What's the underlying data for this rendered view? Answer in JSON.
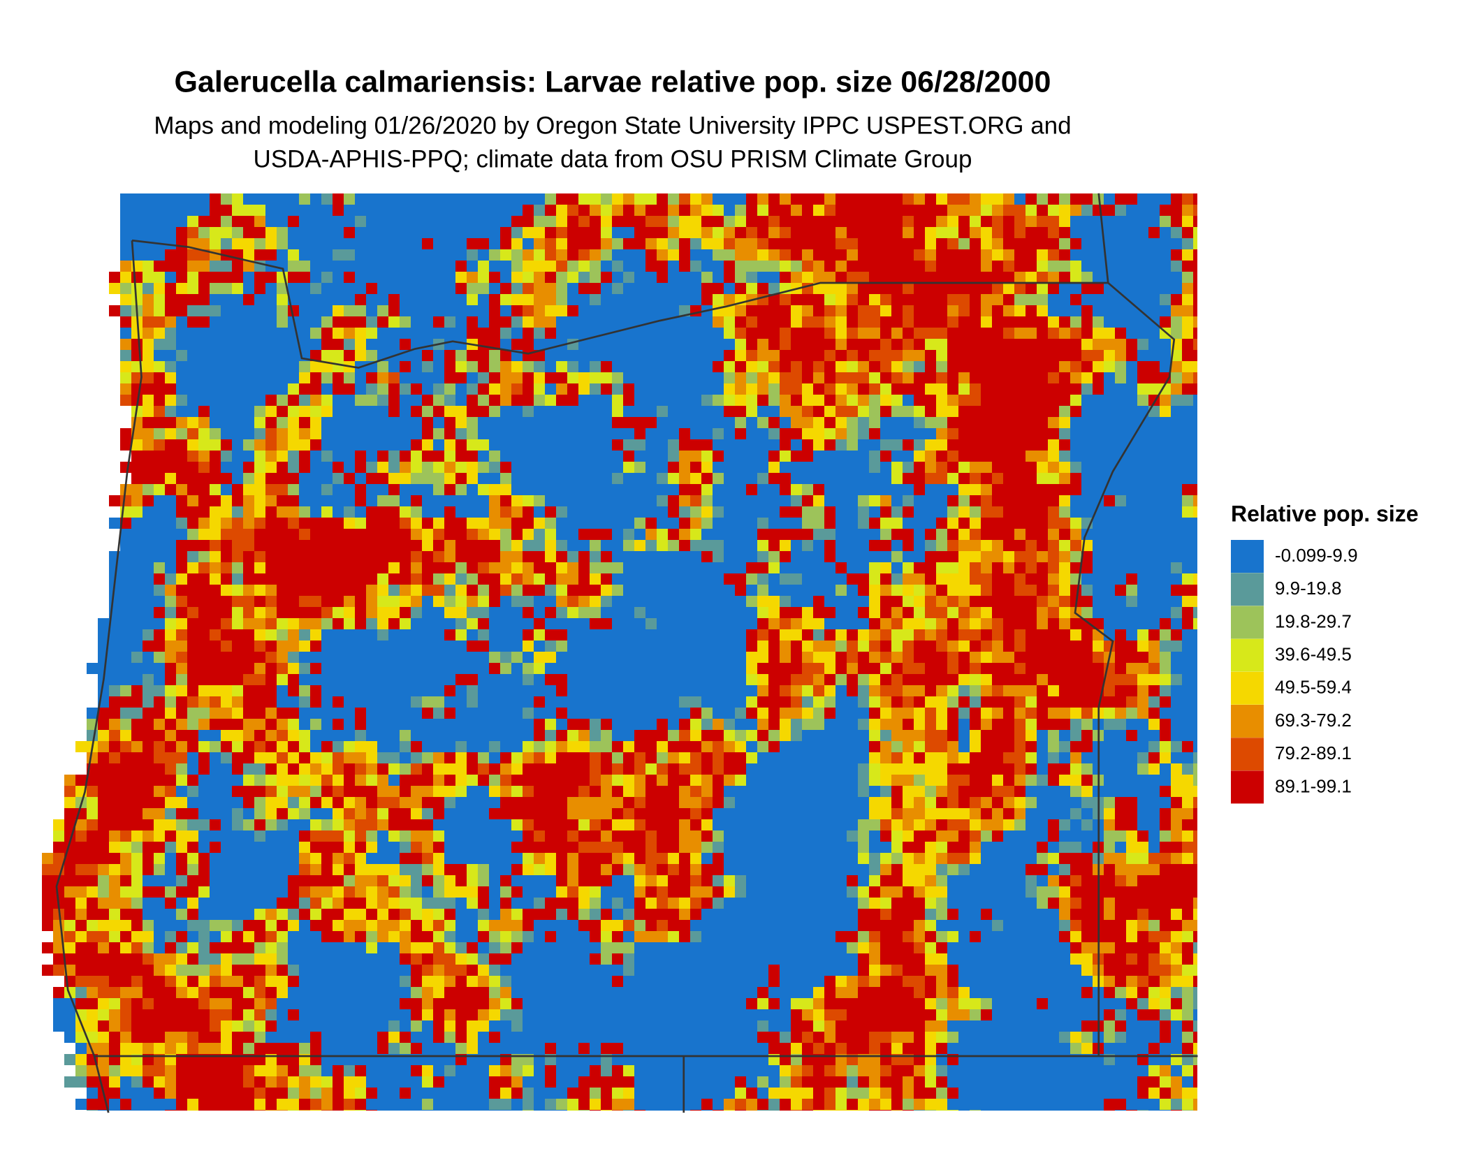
{
  "map": {
    "title": "Galerucella calmariensis: Larvae relative pop. size 06/28/2000",
    "subtitle": [
      "Maps and modeling 01/26/2020 by Oregon State University IPPC USPEST.ORG and",
      "USDA-APHIS-PPQ; climate data from OSU PRISM Climate Group"
    ],
    "legend": {
      "title": "Relative pop. size",
      "items": [
        {
          "label": "-0.099-9.9",
          "color": "#1874cd"
        },
        {
          "label": "9.9-19.8",
          "color": "#5a9a9a"
        },
        {
          "label": "19.8-29.7",
          "color": "#9dc35a"
        },
        {
          "label": "39.6-49.5",
          "color": "#d7e81a"
        },
        {
          "label": "49.5-59.4",
          "color": "#f5d800"
        },
        {
          "label": "69.3-79.2",
          "color": "#e88e00"
        },
        {
          "label": "79.2-89.1",
          "color": "#dd4a00"
        },
        {
          "label": "89.1-99.1",
          "color": "#cc0000"
        }
      ]
    }
  }
}
